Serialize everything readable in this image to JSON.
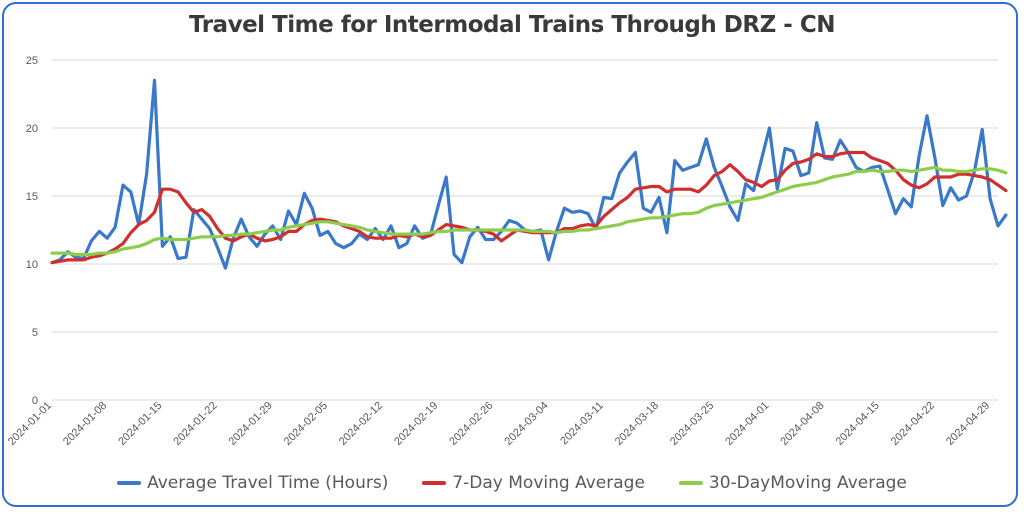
{
  "chart_data": {
    "type": "line",
    "title": "Travel Time for Intermodal Trains Through DRZ - CN",
    "xlabel": "",
    "ylabel": "",
    "ylim": [
      0,
      25
    ],
    "yticks": [
      0,
      5,
      10,
      15,
      20,
      25
    ],
    "x_start": "2024-01-01",
    "x_end": "2024-04-30",
    "xtick_labels": [
      "2024-01-01",
      "2024-01-08",
      "2024-01-15",
      "2024-01-22",
      "2024-01-29",
      "2024-02-05",
      "2024-02-12",
      "2024-02-19",
      "2024-02-26",
      "2024-03-04",
      "2024-03-11",
      "2024-03-18",
      "2024-03-25",
      "2024-04-01",
      "2024-04-08",
      "2024-04-15",
      "2024-04-22",
      "2024-04-29"
    ],
    "grid": true,
    "legend_position": "bottom",
    "series": [
      {
        "name": "Average Travel Time (Hours)",
        "color": "#3a78c9",
        "values": [
          10.1,
          10.3,
          10.9,
          10.5,
          10.4,
          11.7,
          12.4,
          11.9,
          12.7,
          15.8,
          15.3,
          12.9,
          16.6,
          23.5,
          11.3,
          12.0,
          10.4,
          10.5,
          14.0,
          13.3,
          12.6,
          11.2,
          9.7,
          11.9,
          13.3,
          12.0,
          11.3,
          12.2,
          12.8,
          11.8,
          13.9,
          12.9,
          15.2,
          14.1,
          12.1,
          12.4,
          11.5,
          11.2,
          11.5,
          12.2,
          11.8,
          12.6,
          11.8,
          12.8,
          11.2,
          11.5,
          12.8,
          11.9,
          12.1,
          14.3,
          16.4,
          10.7,
          10.1,
          12.0,
          12.7,
          11.8,
          11.8,
          12.4,
          13.2,
          13.0,
          12.5,
          12.4,
          12.5,
          10.3,
          12.4,
          14.1,
          13.8,
          13.9,
          13.7,
          12.6,
          14.9,
          14.8,
          16.7,
          17.5,
          18.2,
          14.1,
          13.8,
          14.9,
          12.3,
          17.6,
          16.9,
          17.1,
          17.3,
          19.2,
          17.1,
          15.7,
          14.2,
          13.2,
          15.9,
          15.4,
          17.7,
          20.0,
          15.5,
          18.5,
          18.3,
          16.5,
          16.7,
          20.4,
          17.8,
          17.7,
          19.1,
          18.2,
          17.1,
          16.8,
          17.1,
          17.2,
          15.5,
          13.7,
          14.8,
          14.2,
          18.0,
          20.9,
          17.8,
          14.3,
          15.6,
          14.7,
          15.0,
          16.8,
          19.9,
          14.8,
          12.8,
          13.6
        ]
      },
      {
        "name": "7-Day Moving Average",
        "color": "#d02f2f",
        "values": [
          10.1,
          10.2,
          10.3,
          10.3,
          10.3,
          10.5,
          10.6,
          10.8,
          11.1,
          11.5,
          12.3,
          12.9,
          13.2,
          13.8,
          15.5,
          15.5,
          15.3,
          14.5,
          13.8,
          14.0,
          13.5,
          12.6,
          11.9,
          11.7,
          12.0,
          12.2,
          11.9,
          11.7,
          11.8,
          12.0,
          12.4,
          12.4,
          12.9,
          13.2,
          13.3,
          13.2,
          13.1,
          12.8,
          12.6,
          12.4,
          12.0,
          11.9,
          11.9,
          11.9,
          12.1,
          12.0,
          12.2,
          12.0,
          12.1,
          12.5,
          12.9,
          12.8,
          12.7,
          12.5,
          12.5,
          12.4,
          12.2,
          11.7,
          12.1,
          12.5,
          12.4,
          12.3,
          12.3,
          12.3,
          12.3,
          12.6,
          12.6,
          12.8,
          12.9,
          12.8,
          13.5,
          14.0,
          14.5,
          14.9,
          15.5,
          15.6,
          15.7,
          15.7,
          15.3,
          15.5,
          15.5,
          15.5,
          15.3,
          15.8,
          16.5,
          16.8,
          17.3,
          16.8,
          16.2,
          16.0,
          15.7,
          16.1,
          16.2,
          16.9,
          17.4,
          17.5,
          17.7,
          18.1,
          17.9,
          17.9,
          18.1,
          18.2,
          18.2,
          18.2,
          17.8,
          17.6,
          17.4,
          16.9,
          16.2,
          15.8,
          15.6,
          15.9,
          16.4,
          16.4,
          16.4,
          16.6,
          16.6,
          16.5,
          16.4,
          16.2,
          15.8,
          15.4
        ]
      },
      {
        "name": "30-DayMoving Average",
        "color": "#8ccd4c",
        "values": [
          10.8,
          10.8,
          10.8,
          10.7,
          10.7,
          10.7,
          10.8,
          10.8,
          10.9,
          11.1,
          11.2,
          11.3,
          11.5,
          11.8,
          11.9,
          11.8,
          11.8,
          11.8,
          11.9,
          12.0,
          12.0,
          12.0,
          12.1,
          12.1,
          12.2,
          12.2,
          12.3,
          12.4,
          12.5,
          12.5,
          12.7,
          12.8,
          12.9,
          13.0,
          13.1,
          13.1,
          13.0,
          12.9,
          12.8,
          12.7,
          12.5,
          12.4,
          12.3,
          12.2,
          12.2,
          12.2,
          12.2,
          12.2,
          12.3,
          12.4,
          12.4,
          12.5,
          12.5,
          12.5,
          12.5,
          12.5,
          12.5,
          12.5,
          12.5,
          12.5,
          12.5,
          12.4,
          12.4,
          12.4,
          12.3,
          12.4,
          12.4,
          12.5,
          12.5,
          12.6,
          12.7,
          12.8,
          12.9,
          13.1,
          13.2,
          13.3,
          13.4,
          13.4,
          13.5,
          13.6,
          13.7,
          13.7,
          13.8,
          14.1,
          14.3,
          14.4,
          14.5,
          14.6,
          14.7,
          14.8,
          14.9,
          15.1,
          15.3,
          15.5,
          15.7,
          15.8,
          15.9,
          16.0,
          16.2,
          16.4,
          16.5,
          16.6,
          16.8,
          16.8,
          16.9,
          16.8,
          16.8,
          16.9,
          16.9,
          16.8,
          16.9,
          17.0,
          17.1,
          16.9,
          16.9,
          16.8,
          16.8,
          16.9,
          17.0,
          17.0,
          16.9,
          16.7
        ]
      }
    ]
  }
}
